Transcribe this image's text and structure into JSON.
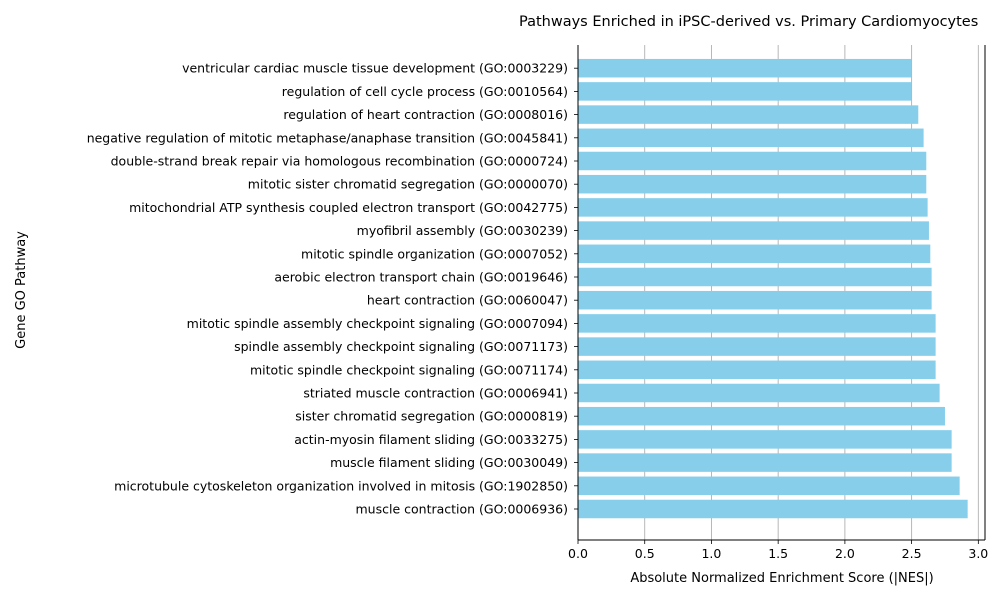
{
  "chart_data": {
    "type": "bar",
    "orientation": "horizontal",
    "title": "Pathways Enriched in iPSC-derived vs. Primary Cardiomyocytes",
    "xlabel": "Absolute Normalized Enrichment Score (|NES|)",
    "ylabel": "Gene GO Pathway",
    "xlim": [
      0,
      3.05
    ],
    "xticks": [
      0.0,
      0.5,
      1.0,
      1.5,
      2.0,
      2.5,
      3.0
    ],
    "xtick_labels": [
      "0.0",
      "0.5",
      "1.0",
      "1.5",
      "2.0",
      "2.5",
      "3.0"
    ],
    "grid": "x",
    "bar_color": "#87ceeb",
    "grid_color": "#b0b0b0",
    "categories": [
      "muscle contraction (GO:0006936)",
      "microtubule cytoskeleton organization involved in mitosis (GO:1902850)",
      "muscle filament sliding (GO:0030049)",
      "actin-myosin filament sliding (GO:0033275)",
      "sister chromatid segregation (GO:0000819)",
      "striated muscle contraction (GO:0006941)",
      "mitotic spindle checkpoint signaling (GO:0071174)",
      "spindle assembly checkpoint signaling (GO:0071173)",
      "mitotic spindle assembly checkpoint signaling (GO:0007094)",
      "heart contraction (GO:0060047)",
      "aerobic electron transport chain (GO:0019646)",
      "mitotic spindle organization (GO:0007052)",
      "myofibril assembly (GO:0030239)",
      "mitochondrial ATP synthesis coupled electron transport (GO:0042775)",
      "mitotic sister chromatid segregation (GO:0000070)",
      "double-strand break repair via homologous recombination (GO:0000724)",
      "negative regulation of mitotic metaphase/anaphase transition (GO:0045841)",
      "regulation of heart contraction (GO:0008016)",
      "regulation of cell cycle process (GO:0010564)",
      "ventricular cardiac muscle tissue development (GO:0003229)"
    ],
    "values": [
      2.92,
      2.86,
      2.8,
      2.8,
      2.75,
      2.71,
      2.68,
      2.68,
      2.68,
      2.65,
      2.65,
      2.64,
      2.63,
      2.62,
      2.61,
      2.61,
      2.59,
      2.55,
      2.5,
      2.5
    ]
  }
}
